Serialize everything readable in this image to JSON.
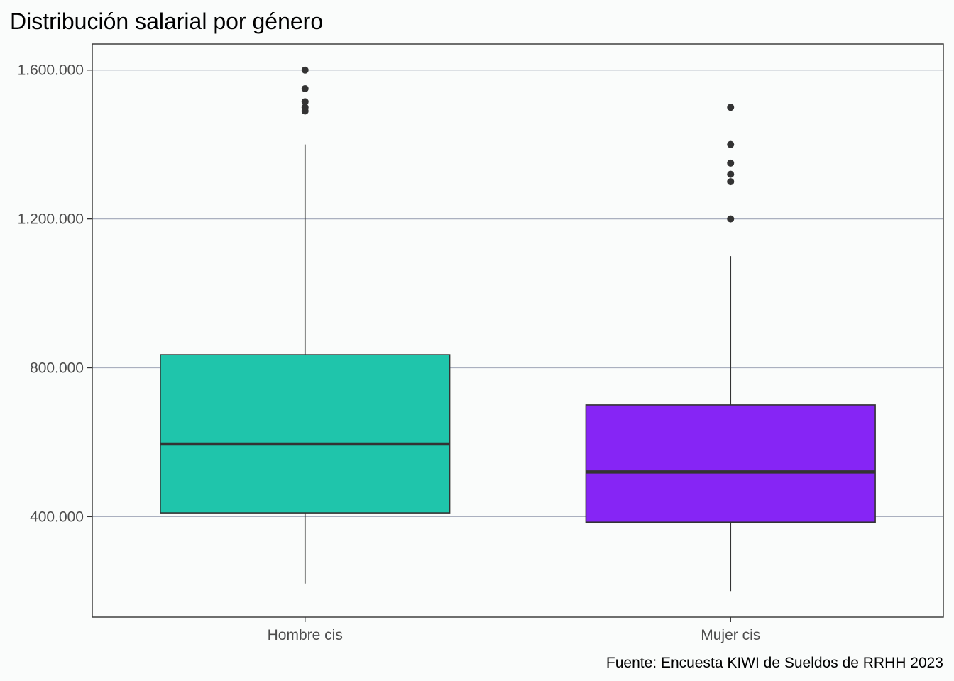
{
  "chart_data": {
    "type": "boxplot",
    "title": "Distribución salarial por género",
    "caption": "Fuente: Encuesta KIWI de Sueldos de RRHH 2023",
    "xlabel": "",
    "ylabel": "",
    "categories": [
      "Hombre cis",
      "Mujer cis"
    ],
    "y_ticks": [
      400000,
      800000,
      1200000,
      1600000
    ],
    "y_tick_labels": [
      "400.000",
      "800.000",
      "1.200.000",
      "1.600.000"
    ],
    "ylim": [
      130000,
      1670000
    ],
    "grid": "horizontal major gridlines",
    "legend": "none",
    "boxes": [
      {
        "category": "Hombre cis",
        "color": "#1fc5ab",
        "whisker_low": 220000,
        "q1": 410000,
        "median": 595000,
        "q3": 835000,
        "whisker_high": 1400000,
        "outliers": [
          1490000,
          1500000,
          1515000,
          1550000,
          1600000
        ]
      },
      {
        "category": "Mujer cis",
        "color": "#8625f5",
        "whisker_low": 200000,
        "q1": 385000,
        "median": 520000,
        "q3": 700000,
        "whisker_high": 1100000,
        "outliers": [
          1200000,
          1300000,
          1320000,
          1350000,
          1400000,
          1500000
        ]
      }
    ]
  }
}
